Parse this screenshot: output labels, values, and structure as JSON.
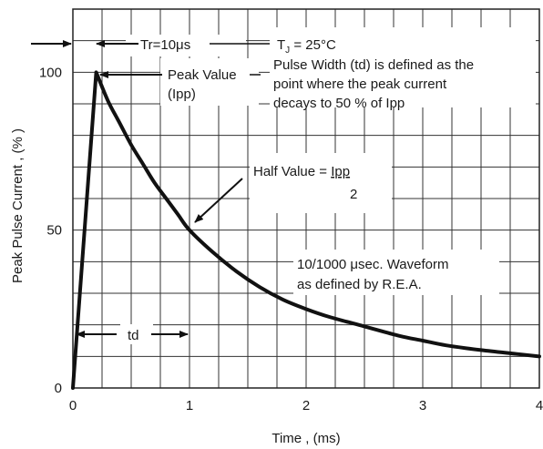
{
  "chart_data": {
    "type": "line",
    "title": "",
    "xlabel": "Time , (ms)",
    "ylabel": "Peak Pulse Current , (% )",
    "xlim": [
      0,
      4
    ],
    "ylim": [
      0,
      120
    ],
    "x_ticks": [
      0,
      1,
      2,
      3,
      4
    ],
    "x_tick_labels": [
      "0",
      "1",
      "2",
      "3",
      "4"
    ],
    "y_ticks": [
      0,
      50,
      100
    ],
    "y_tick_labels": [
      "0",
      "50",
      "100"
    ],
    "grid": true,
    "legend": "none",
    "series": [
      {
        "color": "#111111",
        "x": [
          0,
          0.2,
          0.3,
          0.4,
          0.5,
          0.6,
          0.7,
          0.8,
          0.9,
          1.0,
          1.2,
          1.4,
          1.6,
          1.8,
          2.0,
          2.2,
          2.5,
          2.8,
          3.0,
          3.2,
          3.5,
          3.8,
          4.0
        ],
        "y": [
          0,
          100,
          91,
          84,
          77,
          71,
          65,
          60,
          55,
          50,
          43,
          37,
          32,
          28,
          25,
          22.5,
          19.5,
          16.5,
          15,
          13.5,
          12,
          10.8,
          10
        ]
      }
    ],
    "annotations": {
      "rise_time": "Tr=10μs",
      "peak_value_line1": "Peak Value",
      "peak_value_line2": "(Ipp)",
      "tj": "T",
      "tj_sub": "J",
      "tj_value": " = 25°C",
      "pulse_width_line1": "Pulse Width (td) is defined as the",
      "pulse_width_line2": "point where the peak current",
      "pulse_width_line3": "decays to 50 % of Ipp",
      "half_value_prefix": "Half Value = ",
      "half_value_numerator": "Ipp",
      "half_value_denominator": "2",
      "waveform_line1": "10/1000 μsec. Waveform",
      "waveform_line2": "as defined by R.E.A.",
      "td_label": "td"
    }
  }
}
